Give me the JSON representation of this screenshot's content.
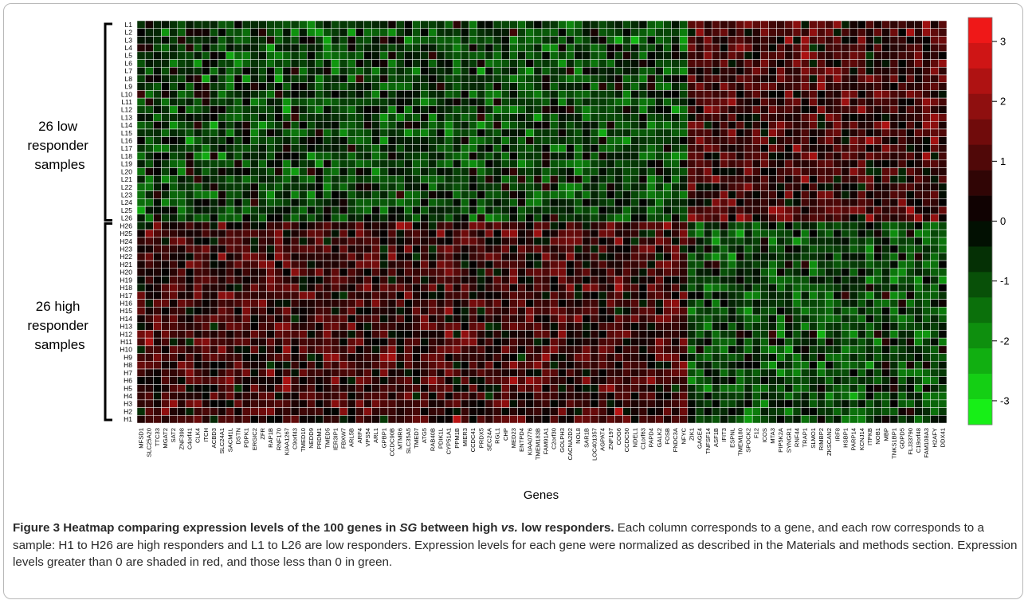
{
  "chart_data": {
    "type": "heatmap",
    "rows": [
      "L1",
      "L2",
      "L3",
      "L4",
      "L5",
      "L6",
      "L7",
      "L8",
      "L9",
      "L10",
      "L11",
      "L12",
      "L13",
      "L14",
      "L15",
      "L16",
      "L17",
      "L18",
      "L19",
      "L20",
      "L21",
      "L22",
      "L23",
      "L24",
      "L25",
      "L26",
      "H26",
      "H25",
      "H24",
      "H23",
      "H22",
      "H21",
      "H20",
      "H19",
      "H18",
      "H17",
      "H16",
      "H15",
      "H14",
      "H13",
      "H12",
      "H11",
      "H10",
      "H9",
      "H8",
      "H7",
      "H6",
      "H5",
      "H4",
      "H3",
      "H2",
      "H1"
    ],
    "columns": [
      "MFSD1",
      "SLC25A20",
      "TTC33",
      "MGAT2",
      "SAT2",
      "ZNF398",
      "C4orf41",
      "CLK4",
      "ITCH",
      "ACBD3",
      "SLC24A1",
      "SACM1L",
      "DSTN",
      "PDPK1",
      "ERGIC2",
      "ZFR",
      "RAP1B",
      "RNF170",
      "KIAA1267",
      "C9orf43",
      "TMED10",
      "NEDD9",
      "PRDM1",
      "TMED5",
      "IER3IP1",
      "FBXW7",
      "ARL5B",
      "ARF4",
      "VPS54",
      "ARL1",
      "GPBP1",
      "CCDC90B",
      "MTMR6",
      "SLC35A5",
      "TMED7",
      "ATG5",
      "RAB40B",
      "PDIK1L",
      "CYP51A1",
      "PPM1B",
      "MIER3",
      "CCDC41",
      "PRDX5",
      "SEC24A",
      "RGL1",
      "CHP",
      "MED23",
      "ENTPD4",
      "KIAA0776",
      "TMEM183B",
      "FAM91A1",
      "C2orf30",
      "GOLPH3",
      "CACNA2D2",
      "NOL8",
      "SAR1B",
      "LOC401357",
      "AGPAT4",
      "ZNF197",
      "COG6",
      "CCDC50",
      "NDEL1",
      "C1orf63",
      "PAPD4",
      "GALK2",
      "FOSB",
      "FNDC3A",
      "NFYC",
      "ZIK1",
      "GAGE4",
      "TNFSF14",
      "ASF1B",
      "IFIT3",
      "ESPNL",
      "TMEM180",
      "SPOCK2",
      "F12",
      "ICOS",
      "MTA3",
      "PIP5K2A",
      "SYNGR1",
      "RNF44",
      "TRAP1",
      "SLMO1",
      "RIMBP2",
      "ZKSCAN2",
      "IRF8",
      "HSBP1",
      "PARP14",
      "KCNJ14",
      "ITPKB",
      "NOB1",
      "MBP",
      "TNKS1BP1",
      "GDPD5",
      "FLJ33790",
      "C19orf48",
      "FAM108A3",
      "H2AFY",
      "DDX41"
    ],
    "colorbar": {
      "ticks": [
        3,
        2,
        1,
        0,
        -1,
        -2,
        -3
      ],
      "range": [
        -3.4,
        3.4
      ],
      "colors": {
        "high": "#ff1a1a",
        "mid": "#000000",
        "low": "#19ff19"
      }
    },
    "groups": [
      {
        "rows": "L1-L26",
        "label_lines": [
          "26 low",
          "responder",
          "samples"
        ]
      },
      {
        "rows": "H26-H1",
        "label_lines": [
          "26 high",
          "responder",
          "samples"
        ]
      }
    ],
    "xlabel": "Genes",
    "ylabel": "",
    "title": ""
  },
  "caption": {
    "title_prefix": "Figure 3 Heatmap comparing expression levels of the 100 genes in ",
    "title_italic_1": "SG",
    "title_middle": " between high ",
    "title_italic_2": "vs.",
    "title_suffix": " low responders.",
    "body": " Each column corresponds to a gene, and each row corresponds to a sample: H1 to H26 are high responders and L1 to L26 are low responders. Expression levels for each gene were normalized as described in the Materials and methods section. Expression levels greater than 0 are shaded in red, and those less than 0 in green."
  }
}
